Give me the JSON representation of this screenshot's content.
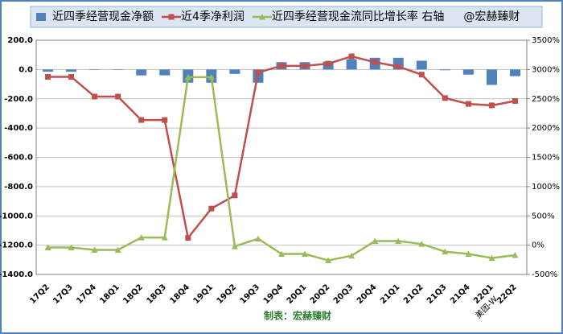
{
  "chart_data": {
    "type": "combo",
    "categories": [
      "17Q2",
      "17Q3",
      "17Q4",
      "18Q1",
      "18Q2",
      "18Q3",
      "18Q4",
      "19Q1",
      "19Q2",
      "19Q3",
      "19Q4",
      "20Q1",
      "20Q2",
      "20Q3",
      "20Q4",
      "21Q1",
      "21Q2",
      "21Q3",
      "21Q4",
      "22Q1",
      "22Q2"
    ],
    "series": [
      {
        "name": "近四季经营现金净额",
        "type": "bar",
        "color": "#4f81bd",
        "axis": "y",
        "values": [
          -15,
          -15,
          -3,
          -3,
          -40,
          -40,
          -90,
          -90,
          -30,
          -90,
          50,
          50,
          55,
          70,
          80,
          80,
          60,
          -5,
          -35,
          -105,
          -45
        ]
      },
      {
        "name": "近4季净利润",
        "type": "line",
        "color": "#c0504d",
        "axis": "y",
        "values": [
          -50,
          -50,
          -185,
          -185,
          -345,
          -345,
          -1150,
          -950,
          -860,
          -20,
          25,
          25,
          40,
          90,
          50,
          20,
          -35,
          -195,
          -235,
          -245,
          -215
        ]
      },
      {
        "name": "近四季经营现金流同比增长率 右轴",
        "type": "line",
        "color": "#9bbb59",
        "axis": "y2",
        "values": [
          -40,
          -40,
          -80,
          -80,
          130,
          130,
          2870,
          2870,
          -20,
          110,
          -150,
          -150,
          -260,
          -180,
          70,
          70,
          20,
          -110,
          -150,
          -220,
          -170
        ]
      }
    ],
    "annotation": "@宏赫臻财",
    "note": "美团-W",
    "source": "制表：宏赫臻财",
    "ylim": [
      -1400,
      200
    ],
    "yticks": [
      {
        "value": 200,
        "label": "200.0"
      },
      {
        "value": 0,
        "label": "0.0"
      },
      {
        "value": -200,
        "label": "-200.0"
      },
      {
        "value": -400,
        "label": "-400.0"
      },
      {
        "value": -600,
        "label": "-600.0"
      },
      {
        "value": -800,
        "label": "-800.0"
      },
      {
        "value": -1000,
        "label": "-1000.0"
      },
      {
        "value": -1200,
        "label": "-1200.0"
      },
      {
        "value": -1400,
        "label": "-1400.0"
      }
    ],
    "y2lim": [
      -500,
      3500
    ],
    "y2ticks": [
      {
        "value": 3500,
        "label": "3500%"
      },
      {
        "value": 3000,
        "label": "3000%"
      },
      {
        "value": 2500,
        "label": "2500%"
      },
      {
        "value": 2000,
        "label": "2000%"
      },
      {
        "value": 1500,
        "label": "1500%"
      },
      {
        "value": 1000,
        "label": "1000%"
      },
      {
        "value": 500,
        "label": "500%"
      },
      {
        "value": 0,
        "label": "0%"
      },
      {
        "value": -500,
        "label": "-500%"
      }
    ],
    "grid": true
  }
}
